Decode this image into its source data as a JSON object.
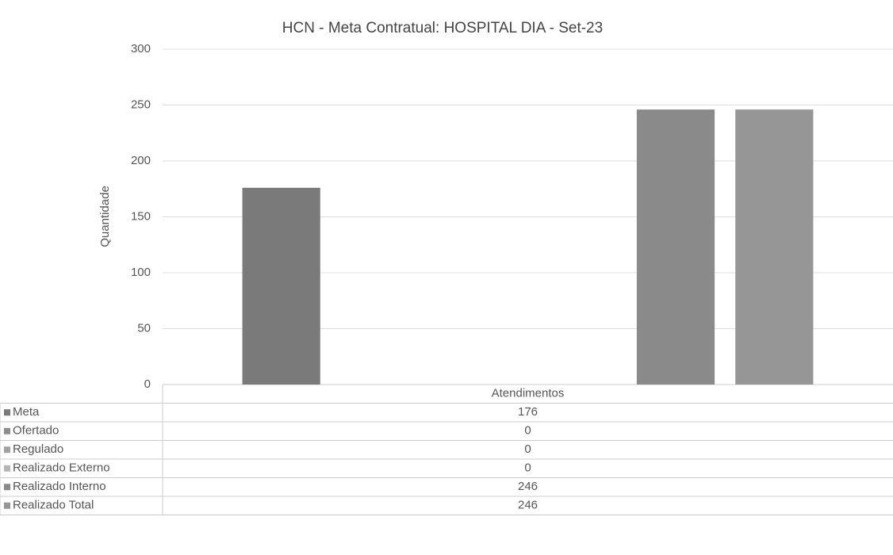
{
  "chart_data": {
    "type": "bar",
    "title": "HCN - Meta Contratual: HOSPITAL DIA - Set-23",
    "y_label": "Quantidade",
    "categories": [
      "Atendimentos"
    ],
    "series": [
      {
        "name": "Meta",
        "color": "#7a7a7a",
        "values": [
          176
        ]
      },
      {
        "name": "Ofertado",
        "color": "#8e8e8e",
        "values": [
          0
        ]
      },
      {
        "name": "Regulado",
        "color": "#a2a2a2",
        "values": [
          0
        ]
      },
      {
        "name": "Realizado Externo",
        "color": "#b6b6b6",
        "values": [
          0
        ]
      },
      {
        "name": "Realizado Interno",
        "color": "#8a8a8a",
        "values": [
          246
        ]
      },
      {
        "name": "Realizado Total",
        "color": "#969696",
        "values": [
          246
        ]
      }
    ],
    "ylim": [
      0,
      300
    ],
    "yticks": [
      0,
      50,
      100,
      150,
      200,
      250,
      300
    ],
    "grid": true
  }
}
